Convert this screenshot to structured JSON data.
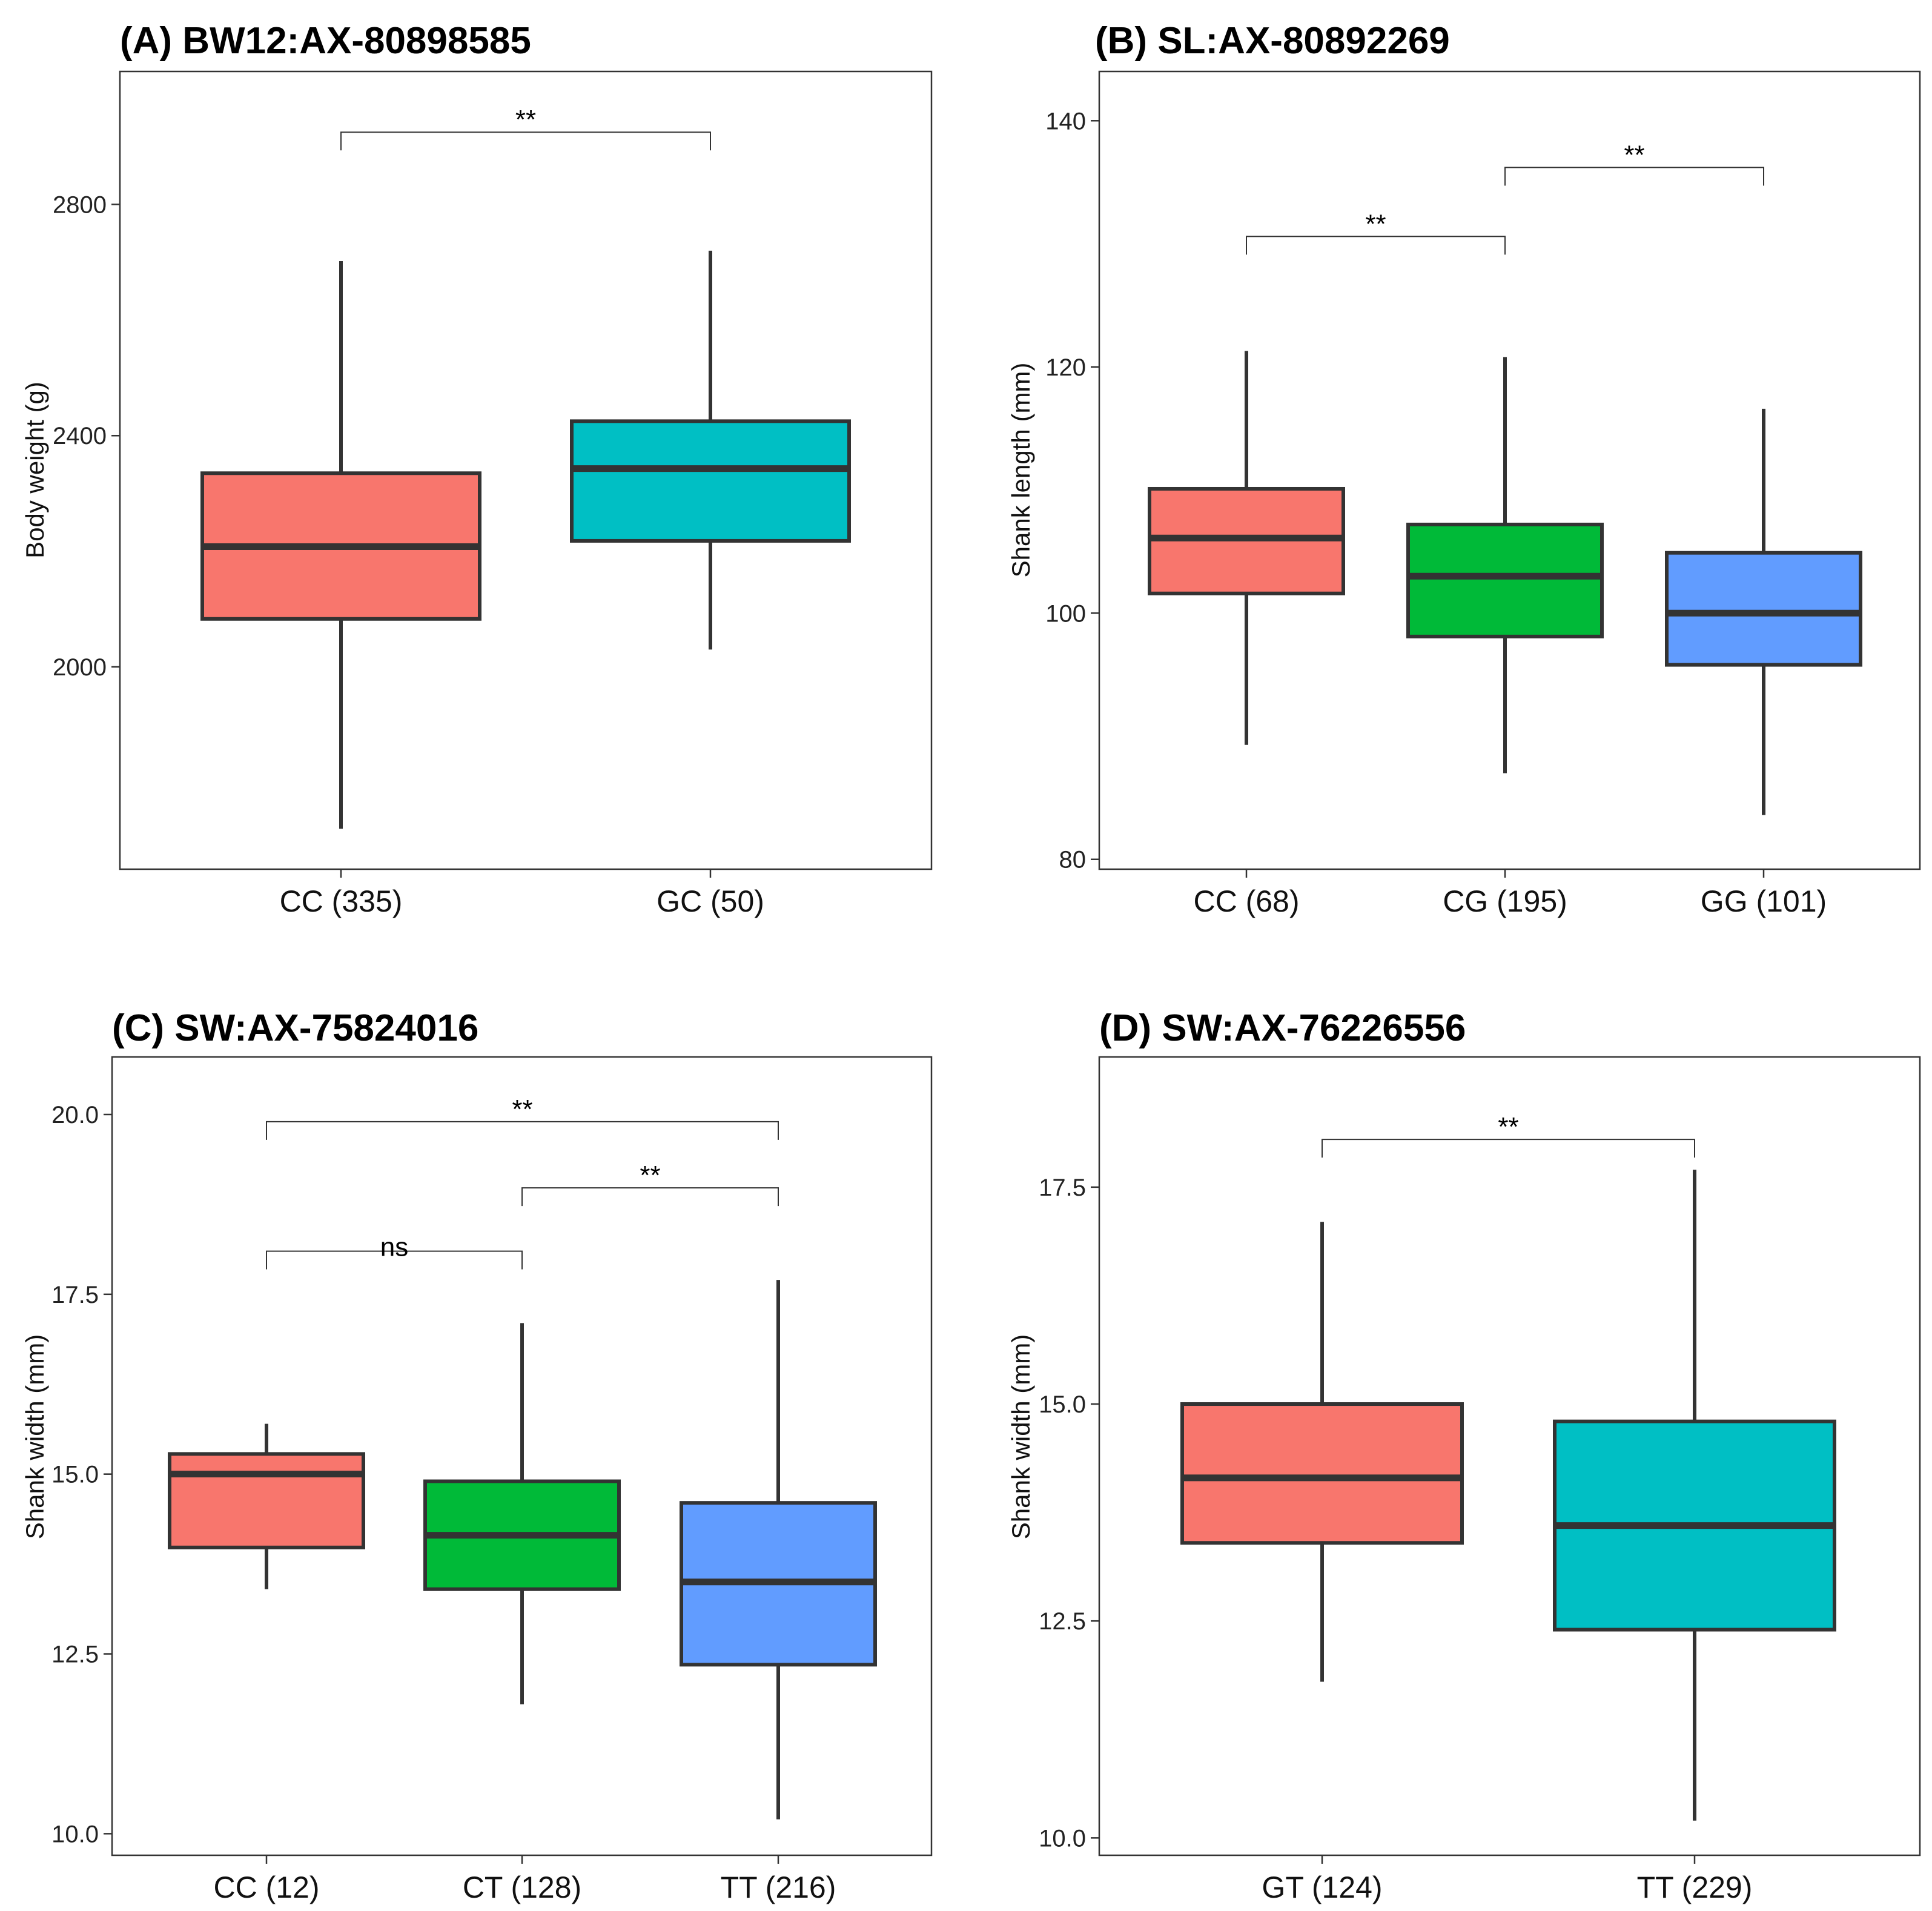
{
  "chart_data": [
    {
      "type": "box",
      "title": "(A) BW12:AX-80898585",
      "ylabel": "Body weight (g)",
      "ylim": [
        1650,
        3030
      ],
      "yticks": [
        2000,
        2400,
        2800
      ],
      "ytick_labels": [
        "2000",
        "2400",
        "2800"
      ],
      "groups": [
        {
          "label": "CC (335)",
          "color": "#F8766D",
          "whisker_low": 1720,
          "q1": 2083,
          "median": 2208,
          "q3": 2335,
          "whisker_high": 2702
        },
        {
          "label": "GC (50)",
          "color": "#00BFC4",
          "whisker_low": 2030,
          "q1": 2218,
          "median": 2343,
          "q3": 2425,
          "whisker_high": 2720
        }
      ],
      "comparisons": [
        {
          "from": 0,
          "to": 1,
          "y": 2925,
          "label": "**"
        }
      ]
    },
    {
      "type": "box",
      "title": "(B) SL:AX-80892269",
      "ylabel": "Shank length (mm)",
      "ylim": [
        79.2,
        144
      ],
      "yticks": [
        80,
        100,
        120,
        140
      ],
      "ytick_labels": [
        "80",
        "100",
        "120",
        "140"
      ],
      "groups": [
        {
          "label": "CC (68)",
          "color": "#F8766D",
          "whisker_low": 89.3,
          "q1": 101.6,
          "median": 106.1,
          "q3": 110.1,
          "whisker_high": 121.3
        },
        {
          "label": "CG (195)",
          "color": "#00BA38",
          "whisker_low": 87.0,
          "q1": 98.1,
          "median": 103.0,
          "q3": 107.2,
          "whisker_high": 120.8
        },
        {
          "label": "GG (101)",
          "color": "#619CFF",
          "whisker_low": 83.6,
          "q1": 95.8,
          "median": 100.0,
          "q3": 104.9,
          "whisker_high": 116.6
        }
      ],
      "comparisons": [
        {
          "from": 0,
          "to": 1,
          "y": 130.6,
          "label": "**"
        },
        {
          "from": 1,
          "to": 2,
          "y": 136.2,
          "label": "**"
        }
      ]
    },
    {
      "type": "box",
      "title": "(C) SW:AX-75824016",
      "ylabel": "Shank width (mm)",
      "ylim": [
        9.7,
        20.8
      ],
      "yticks": [
        10.0,
        12.5,
        15.0,
        17.5,
        20.0
      ],
      "ytick_labels": [
        "10.0",
        "12.5",
        "15.0",
        "17.5",
        "20.0"
      ],
      "groups": [
        {
          "label": "CC (12)",
          "color": "#F8766D",
          "whisker_low": 13.4,
          "q1": 13.98,
          "median": 15.0,
          "q3": 15.28,
          "whisker_high": 15.7
        },
        {
          "label": "CT (128)",
          "color": "#00BA38",
          "whisker_low": 11.8,
          "q1": 13.4,
          "median": 14.15,
          "q3": 14.9,
          "whisker_high": 17.1
        },
        {
          "label": "TT (216)",
          "color": "#619CFF",
          "whisker_low": 10.2,
          "q1": 12.35,
          "median": 13.5,
          "q3": 14.6,
          "whisker_high": 17.7
        }
      ],
      "comparisons": [
        {
          "from": 0,
          "to": 2,
          "y": 19.9,
          "label": "**"
        },
        {
          "from": 1,
          "to": 2,
          "y": 18.98,
          "label": "**"
        },
        {
          "from": 0,
          "to": 1,
          "y": 18.1,
          "label": "ns"
        }
      ]
    },
    {
      "type": "box",
      "title": "(D) SW:AX-76226556",
      "ylabel": "Shank width (mm)",
      "ylim": [
        9.8,
        19.0
      ],
      "yticks": [
        10.0,
        12.5,
        15.0,
        17.5
      ],
      "ytick_labels": [
        "10.0",
        "12.5",
        "15.0",
        "17.5"
      ],
      "groups": [
        {
          "label": "GT (124)",
          "color": "#F8766D",
          "whisker_low": 11.8,
          "q1": 13.4,
          "median": 14.15,
          "q3": 15.0,
          "whisker_high": 17.1
        },
        {
          "label": "TT (229)",
          "color": "#00BFC4",
          "whisker_low": 10.2,
          "q1": 12.4,
          "median": 13.6,
          "q3": 14.8,
          "whisker_high": 17.7
        }
      ],
      "comparisons": [
        {
          "from": 0,
          "to": 1,
          "y": 18.05,
          "label": "**"
        }
      ]
    }
  ]
}
